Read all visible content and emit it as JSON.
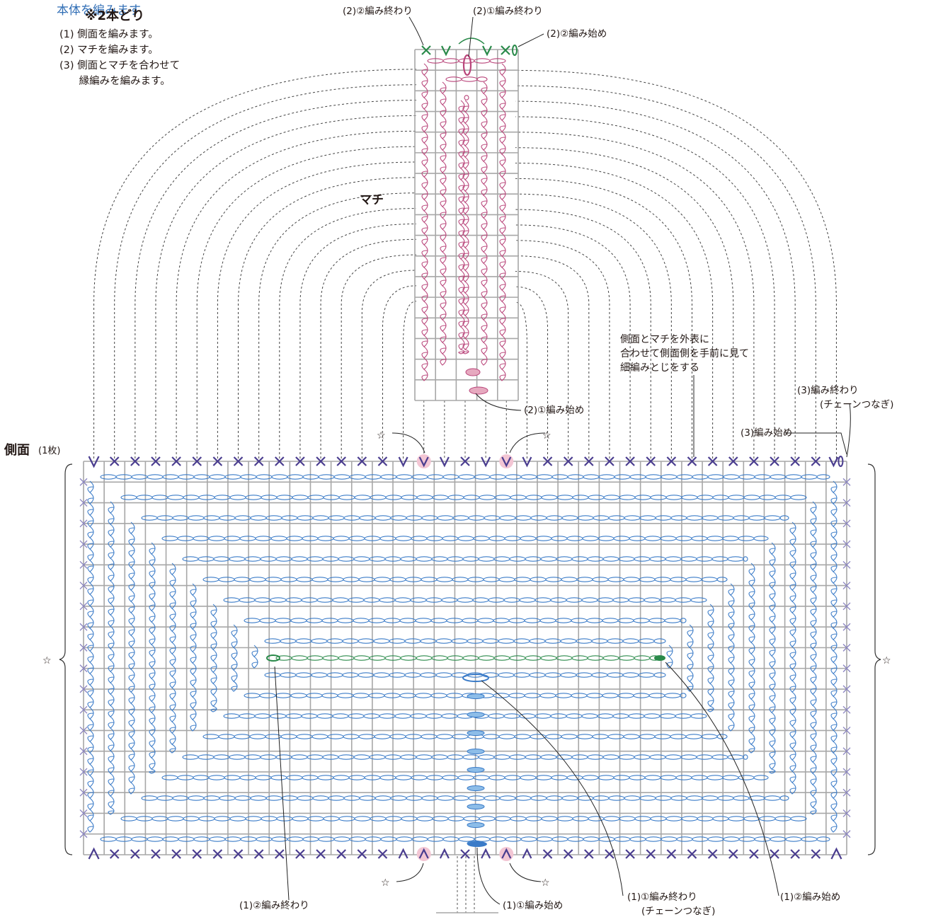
{
  "header": {
    "title_partial": "本体を編みます",
    "yarn_note": "※2本どり"
  },
  "steps": [
    "(1) 側面を編みます。",
    "(2) マチを編みます。",
    "(3) 側面とマチを合わせて",
    "      縁編みを編みます。"
  ],
  "labels": {
    "machi": "マチ",
    "side_title": "側面",
    "side_count": "(1枚)",
    "join_note_1": "側面とマチを外表に",
    "join_note_2": "合わせて側面側を手前に見て",
    "join_note_3": "細編みとじをする",
    "p2_2_end": "(2)②編み終わり",
    "p2_1_end": "(2)①編み終わり",
    "p2_2_start": "(2)②編み始め",
    "p2_1_start": "(2)①編み始め",
    "p3_end": "(3)編み終わり",
    "p3_end_sub": "(チェーンつなぎ)",
    "p3_start": "(3)編み始め",
    "p1_2_end": "(1)②編み終わり",
    "p1_1_start": "(1)①編み始め",
    "p1_1_end": "(1)①編み終わり",
    "p1_1_end_sub": "(チェーンつなぎ)",
    "p1_2_start": "(1)②編み始め",
    "star": "☆"
  },
  "colors": {
    "side_stitch": "#3a7bc8",
    "machi_stitch": "#b9457a",
    "green_stitch": "#2a8a4a",
    "edge_stitch": "#4a3d8f",
    "grid": "#a7a7a7",
    "marker_fill": "#f3c6d4"
  }
}
